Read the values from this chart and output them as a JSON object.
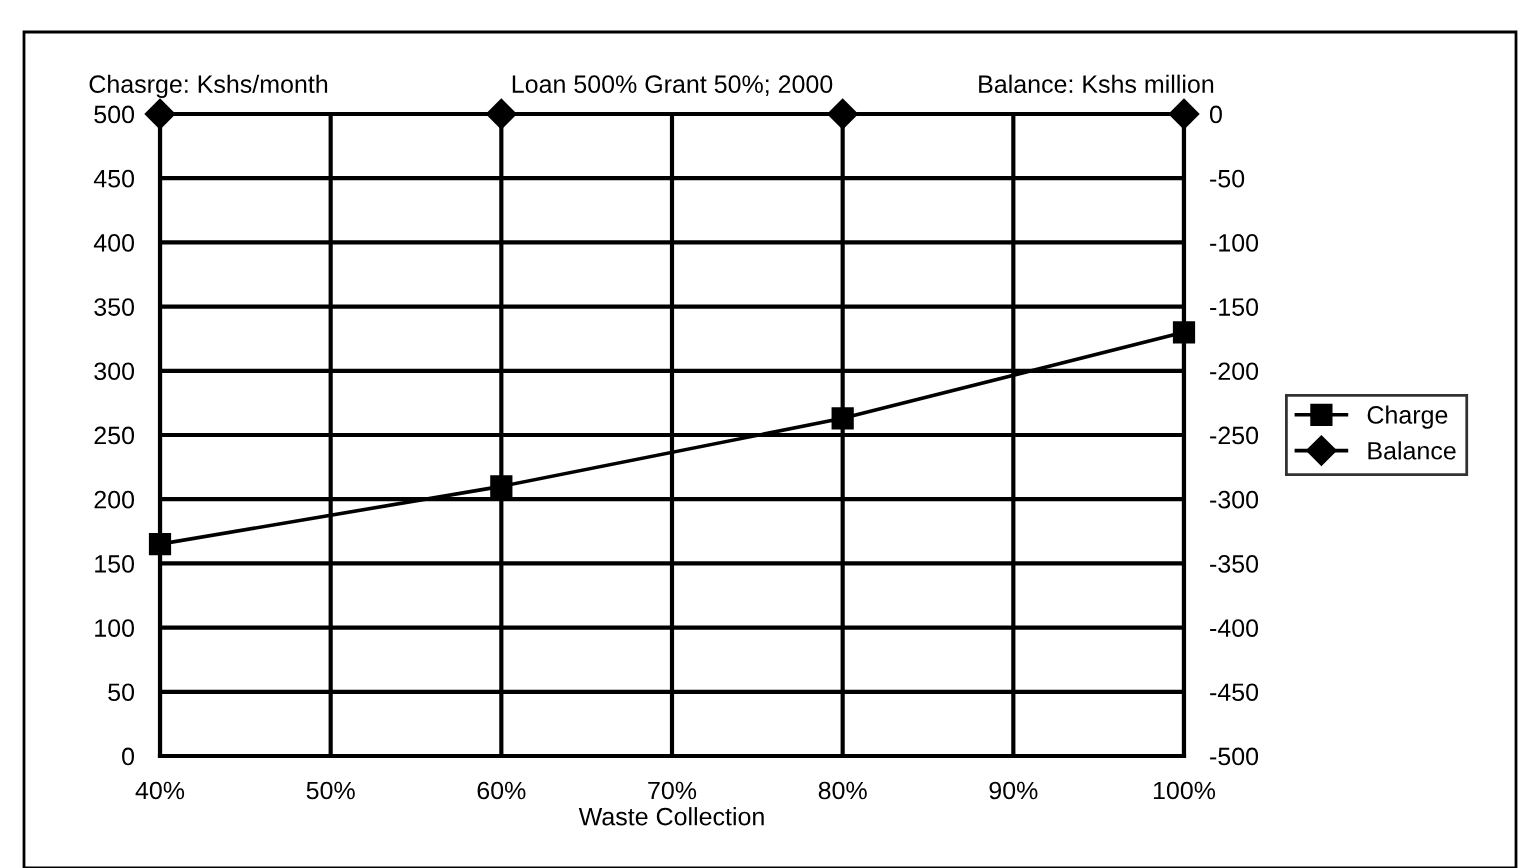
{
  "chart_data": {
    "type": "line",
    "title": "Loan 500% Grant 50%; 2000",
    "xlabel": "Waste Collection",
    "ylabel": "Chasrge: Kshs/month",
    "y2label": "Balance: Kshs million",
    "x": [
      40,
      60,
      80,
      100
    ],
    "series": [
      {
        "name": "Charge",
        "color": "#000000",
        "values": [
          165,
          210,
          263,
          330
        ],
        "marker": "square"
      },
      {
        "name": "Balance",
        "color": "#000000",
        "values": [
          0,
          0,
          0,
          0
        ],
        "marker": "diamond",
        "axis": "y2"
      }
    ],
    "xlim": [
      40,
      100
    ],
    "xticks": [
      {
        "value": 40,
        "label": "40%"
      },
      {
        "value": 50,
        "label": "50%"
      },
      {
        "value": 60,
        "label": "60%"
      },
      {
        "value": 70,
        "label": "70%"
      },
      {
        "value": 80,
        "label": "80%"
      },
      {
        "value": 90,
        "label": "90%"
      },
      {
        "value": 100,
        "label": "100%"
      }
    ],
    "ylim": [
      0,
      500
    ],
    "yticks": [
      0,
      50,
      100,
      150,
      200,
      250,
      300,
      350,
      400,
      450,
      500
    ],
    "y2lim": [
      -500,
      0
    ],
    "y2ticks": [
      -500,
      -450,
      -400,
      -350,
      -300,
      -250,
      -200,
      -150,
      -100,
      -50,
      0
    ],
    "grid": true,
    "legend": "right",
    "line_style": "solid"
  }
}
